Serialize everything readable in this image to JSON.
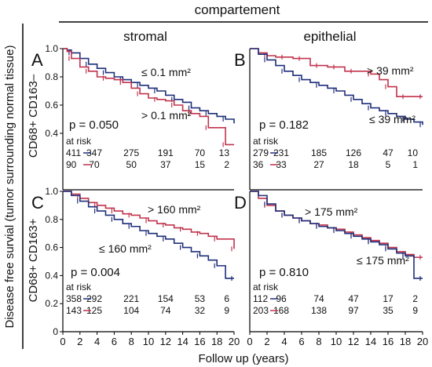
{
  "header": "compartement",
  "columns": [
    "stromal",
    "epithelial"
  ],
  "y_axis_label": "Disease free survial (tumor surrounding normal tissue)",
  "row_labels": [
    "CD68+ CD163–",
    "CD68+ CD163+"
  ],
  "x_axis_label": "Follow up (years)",
  "colors": {
    "blue": "#1f2f7a",
    "red": "#c0334d"
  },
  "chart_data": [
    {
      "type": "line",
      "panel": "A",
      "xlim": [
        0,
        20
      ],
      "ylim": [
        0,
        1.0
      ],
      "y_ticks": [
        "0.4",
        "0.6",
        "0.8",
        "1.0"
      ],
      "p_value": "p = 0.050",
      "at_risk_label": "at risk",
      "series": [
        {
          "name": "≤ 0.1 mm²",
          "color": "#1f2f7a",
          "x": [
            0,
            0.5,
            1,
            2,
            3,
            4,
            5,
            6,
            7,
            8,
            9,
            10,
            11,
            12,
            13,
            14,
            15,
            16,
            17,
            18,
            19,
            20
          ],
          "y": [
            1.0,
            0.99,
            0.97,
            0.93,
            0.89,
            0.86,
            0.83,
            0.8,
            0.78,
            0.76,
            0.74,
            0.72,
            0.7,
            0.67,
            0.64,
            0.62,
            0.58,
            0.56,
            0.54,
            0.52,
            0.5,
            0.47
          ],
          "at_risk": [
            "411",
            "347",
            "275",
            "191",
            "70",
            "13"
          ]
        },
        {
          "name": "> 0.1 mm²",
          "color": "#c0334d",
          "x": [
            0,
            0.5,
            1,
            2,
            3,
            4,
            5,
            6,
            7,
            8,
            9,
            10,
            11,
            12,
            13,
            14,
            15,
            16,
            17,
            18,
            19,
            20
          ],
          "y": [
            1.0,
            0.98,
            0.93,
            0.87,
            0.84,
            0.8,
            0.79,
            0.78,
            0.76,
            0.72,
            0.68,
            0.65,
            0.64,
            0.63,
            0.6,
            0.56,
            0.54,
            0.52,
            0.44,
            0.44,
            0.32,
            0.32
          ],
          "at_risk": [
            "90",
            "70",
            "50",
            "37",
            "15",
            "2"
          ]
        }
      ],
      "labels": [
        "≤ 0.1 mm²",
        "> 0.1 mm²"
      ]
    },
    {
      "type": "line",
      "panel": "B",
      "xlim": [
        0,
        20
      ],
      "ylim": [
        0,
        1.0
      ],
      "y_ticks": [],
      "p_value": "p = 0.182",
      "at_risk_label": "at risk",
      "series": [
        {
          "name": "> 39 mm²",
          "color": "#c0334d",
          "x": [
            0,
            1,
            2,
            3,
            4,
            5,
            6,
            7,
            8,
            9,
            10,
            11,
            12,
            13,
            14,
            15,
            16,
            17,
            18,
            19,
            20
          ],
          "y": [
            1.0,
            0.97,
            0.95,
            0.94,
            0.94,
            0.93,
            0.93,
            0.88,
            0.88,
            0.87,
            0.87,
            0.84,
            0.84,
            0.84,
            0.82,
            0.78,
            0.73,
            0.66,
            0.66,
            0.66,
            0.66
          ],
          "at_risk": [
            "36",
            "33",
            "27",
            "18",
            "5",
            "1"
          ]
        },
        {
          "name": "≤ 39 mm²",
          "color": "#1f2f7a",
          "x": [
            0,
            1,
            2,
            3,
            4,
            5,
            6,
            7,
            8,
            9,
            10,
            11,
            12,
            13,
            14,
            15,
            16,
            17,
            18,
            19,
            20
          ],
          "y": [
            1.0,
            0.96,
            0.92,
            0.88,
            0.84,
            0.81,
            0.78,
            0.76,
            0.74,
            0.72,
            0.7,
            0.67,
            0.64,
            0.61,
            0.58,
            0.56,
            0.54,
            0.52,
            0.5,
            0.48,
            0.46
          ],
          "at_risk": [
            "279",
            "231",
            "185",
            "126",
            "47",
            "10"
          ]
        }
      ],
      "labels": [
        "> 39 mm²",
        "≤ 39 mm²"
      ]
    },
    {
      "type": "line",
      "panel": "C",
      "xlim": [
        0,
        20
      ],
      "ylim": [
        0,
        1.0
      ],
      "y_ticks": [
        "0",
        "0.2",
        "0.4",
        "0.6",
        "0.8",
        "1.0"
      ],
      "p_value": "p = 0.004",
      "at_risk_label": "at risk",
      "series": [
        {
          "name": "> 160 mm²",
          "color": "#c0334d",
          "x": [
            0,
            1,
            2,
            3,
            4,
            5,
            6,
            7,
            8,
            9,
            10,
            11,
            12,
            13,
            14,
            15,
            16,
            17,
            18,
            19,
            20
          ],
          "y": [
            1.0,
            0.98,
            0.95,
            0.92,
            0.9,
            0.88,
            0.86,
            0.84,
            0.83,
            0.81,
            0.79,
            0.77,
            0.76,
            0.74,
            0.73,
            0.71,
            0.7,
            0.68,
            0.66,
            0.66,
            0.59
          ],
          "at_risk": [
            "143",
            "125",
            "104",
            "74",
            "32",
            "9"
          ]
        },
        {
          "name": "≤ 160 mm²",
          "color": "#1f2f7a",
          "x": [
            0,
            1,
            2,
            3,
            4,
            5,
            6,
            7,
            8,
            9,
            10,
            11,
            12,
            13,
            14,
            15,
            16,
            17,
            18,
            19,
            20
          ],
          "y": [
            1.0,
            0.97,
            0.93,
            0.89,
            0.86,
            0.83,
            0.8,
            0.77,
            0.75,
            0.72,
            0.7,
            0.68,
            0.66,
            0.63,
            0.6,
            0.57,
            0.54,
            0.51,
            0.47,
            0.38,
            0.38
          ],
          "at_risk": [
            "358",
            "292",
            "221",
            "154",
            "53",
            "6"
          ]
        }
      ],
      "labels": [
        "> 160 mm²",
        "≤ 160 mm²"
      ]
    },
    {
      "type": "line",
      "panel": "D",
      "xlim": [
        0,
        20
      ],
      "ylim": [
        0,
        1.0
      ],
      "y_ticks": [],
      "p_value": "p = 0.810",
      "at_risk_label": "at risk",
      "series": [
        {
          "name": "> 175 mm²",
          "color": "#c0334d",
          "x": [
            0,
            1,
            2,
            3,
            4,
            5,
            6,
            7,
            8,
            9,
            10,
            11,
            12,
            13,
            14,
            15,
            16,
            17,
            18,
            19,
            20
          ],
          "y": [
            1.0,
            0.95,
            0.9,
            0.86,
            0.83,
            0.81,
            0.79,
            0.77,
            0.76,
            0.74,
            0.73,
            0.71,
            0.69,
            0.67,
            0.65,
            0.63,
            0.6,
            0.57,
            0.55,
            0.53,
            0.53
          ],
          "at_risk": [
            "203",
            "168",
            "138",
            "97",
            "35",
            "9"
          ]
        },
        {
          "name": "≤ 175 mm²",
          "color": "#1f2f7a",
          "x": [
            0,
            1,
            2,
            3,
            4,
            5,
            6,
            7,
            8,
            9,
            10,
            11,
            12,
            13,
            14,
            15,
            16,
            17,
            18,
            19,
            20
          ],
          "y": [
            1.0,
            0.97,
            0.91,
            0.86,
            0.83,
            0.81,
            0.79,
            0.77,
            0.75,
            0.74,
            0.72,
            0.7,
            0.68,
            0.66,
            0.64,
            0.62,
            0.59,
            0.56,
            0.54,
            0.38,
            0.38
          ],
          "at_risk": [
            "112",
            "96",
            "74",
            "47",
            "17",
            "2"
          ]
        }
      ],
      "labels": [
        "> 175 mm²",
        "≤ 175 mm²"
      ]
    }
  ],
  "x_ticks": [
    "0",
    "2",
    "4",
    "6",
    "8",
    "10",
    "12",
    "14",
    "16",
    "18",
    "20"
  ]
}
